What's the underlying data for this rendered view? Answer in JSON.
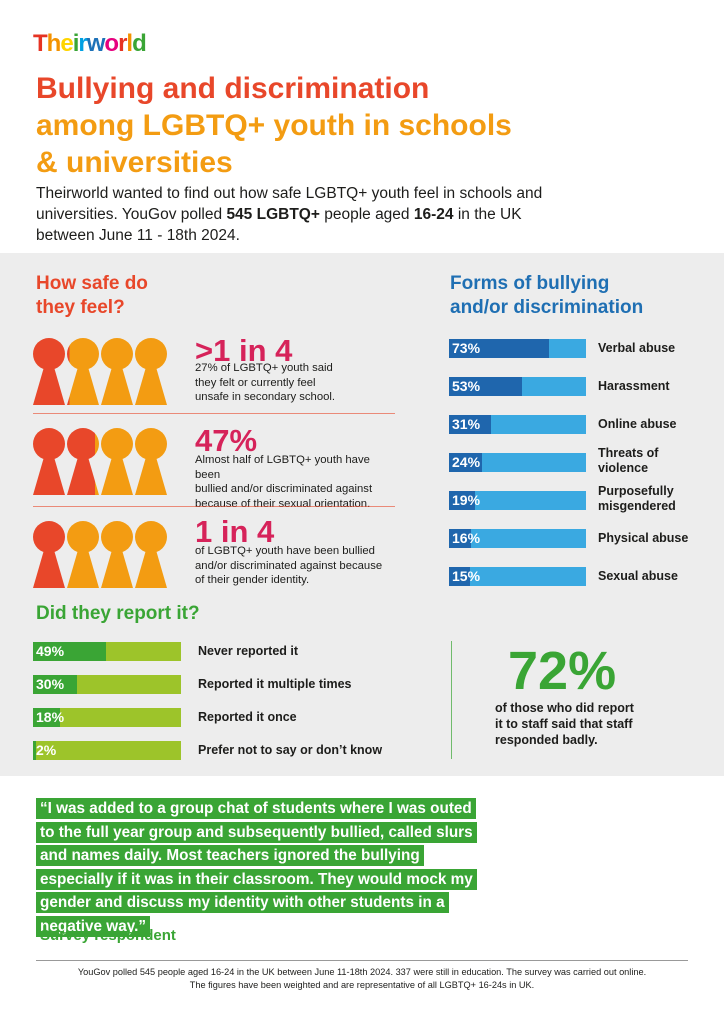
{
  "logo": {
    "text": "Theirworld",
    "letter_colors": [
      "#e63323",
      "#f39200",
      "#ffd500",
      "#3aa535",
      "#00a0e3",
      "#1d71b8",
      "#e6007e",
      "#e63323",
      "#f39200",
      "#3aa535"
    ]
  },
  "title": {
    "line1": "Bullying and discrimination",
    "line2": "among LGBTQ+ youth in schools",
    "line3": "& universities"
  },
  "intro": {
    "p1": "Theirworld wanted to find out how safe LGBTQ+ youth feel in schools and universities. YouGov polled ",
    "b1": "545 LGBTQ+",
    "p2": " people aged ",
    "b2": "16-24",
    "p3": " in the UK between June 11 - 18th 2024."
  },
  "safety": {
    "heading_l1": "How safe do",
    "heading_l2": "they feel?",
    "stats": [
      {
        "big": ">1 in 4",
        "text_l1": "27% of LGBTQ+ youth said",
        "text_l2": "they felt or currently feel",
        "text_l3": "unsafe in secondary school.",
        "value": 0.27
      },
      {
        "big": "47%",
        "text_l1": "Almost half of LGBTQ+ youth have been",
        "text_l2": "bullied and/or discriminated against",
        "text_l3": "because of their sexual orientation.",
        "value": 0.47
      },
      {
        "big": "1 in 4",
        "text_l1": "of LGBTQ+ youth have been bullied",
        "text_l2": "and/or discriminated against because",
        "text_l3": "of their gender identity.",
        "value": 0.25
      }
    ]
  },
  "forms": {
    "heading_l1": "Forms of bullying",
    "heading_l2": "and/or discrimination",
    "items": [
      {
        "value": "73%",
        "pct": 73,
        "label_l1": "Verbal abuse",
        "label_l2": ""
      },
      {
        "value": "53%",
        "pct": 53,
        "label_l1": "Harassment",
        "label_l2": ""
      },
      {
        "value": "31%",
        "pct": 31,
        "label_l1": "Online abuse",
        "label_l2": ""
      },
      {
        "value": "24%",
        "pct": 24,
        "label_l1": "Threats of",
        "label_l2": "violence"
      },
      {
        "value": "19%",
        "pct": 19,
        "label_l1": "Purposefully",
        "label_l2": "misgendered"
      },
      {
        "value": "16%",
        "pct": 16,
        "label_l1": "Physical abuse",
        "label_l2": ""
      },
      {
        "value": "15%",
        "pct": 15,
        "label_l1": "Sexual abuse",
        "label_l2": ""
      }
    ]
  },
  "report": {
    "heading": "Did they report it?",
    "items": [
      {
        "value": "49%",
        "pct": 49,
        "label": "Never reported it"
      },
      {
        "value": "30%",
        "pct": 30,
        "label": "Reported it multiple times"
      },
      {
        "value": "18%",
        "pct": 18,
        "label": "Reported it once"
      },
      {
        "value": "2%",
        "pct": 2,
        "label": "Prefer not to say or don’t know"
      }
    ],
    "staff_big": "72%",
    "staff_l1": "of those who did report",
    "staff_l2": "it to staff said that staff",
    "staff_l3": "responded badly."
  },
  "quote": {
    "text": "“I was added to a group chat of students where I was outed to the full year group and subsequently bullied, called slurs and names daily. Most teachers ignored the bullying especially if it was in their classroom. They would mock my gender and discuss my identity with other students in a negative way.”",
    "attribution": "Survey respondent"
  },
  "footer": {
    "l1": "YouGov polled 545 people aged 16-24 in the UK between June 11-18th 2024. 337 were still in education. The survey was carried out online.",
    "l2": "The figures have been weighted and are representative of all LGBTQ+ 16-24s in UK."
  },
  "colors": {
    "orange_red": "#e8472a",
    "orange": "#f39c12",
    "pink": "#d6235a",
    "blue_dark": "#1f66ad",
    "blue_light": "#3aa9e1",
    "green": "#3aa535",
    "lime": "#9dc42a",
    "grey_bg": "#ededed"
  }
}
